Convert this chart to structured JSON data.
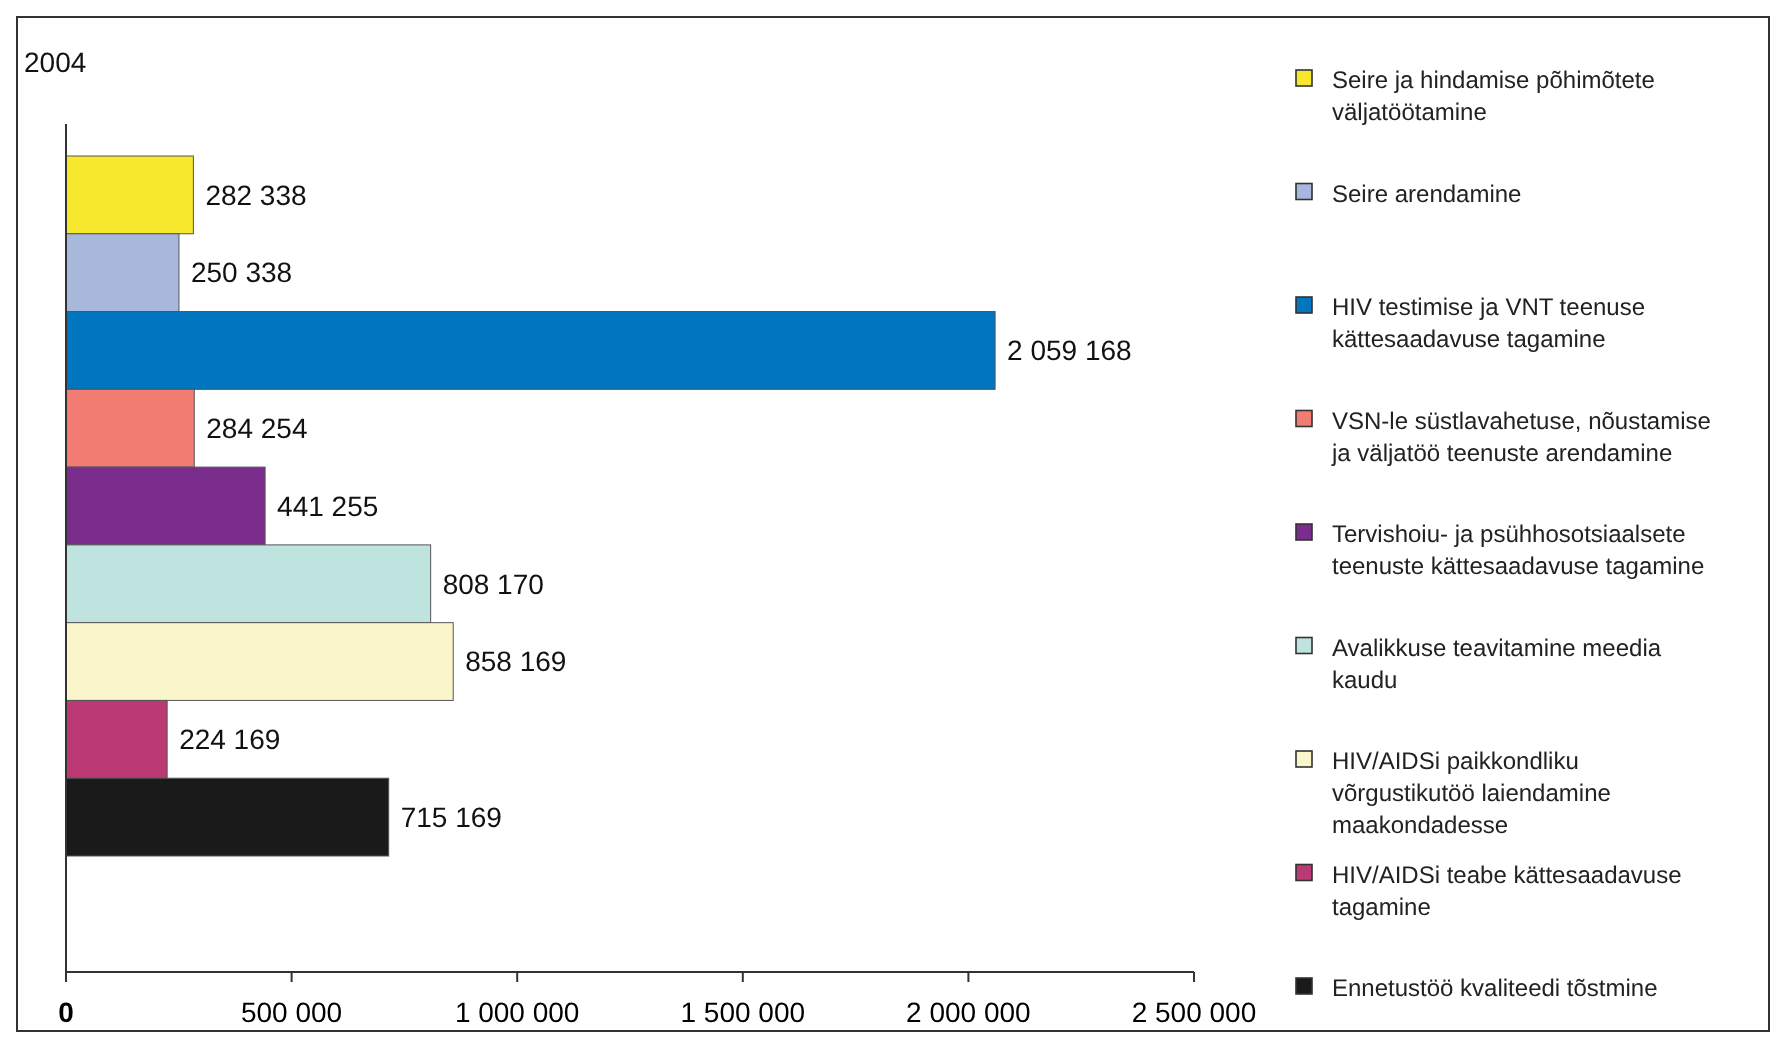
{
  "chart_data": {
    "type": "bar",
    "orientation": "horizontal",
    "ylabel": "2004",
    "categories": [
      null
    ],
    "series": [
      {
        "name": "Seire ja hindamise põhimõtete väljatöötamine",
        "color": "#f7e82e",
        "values": [
          282338
        ]
      },
      {
        "name": "Seire arendamine",
        "color": "#a8b8dc",
        "values": [
          250338
        ]
      },
      {
        "name": "HIV testimise ja VNT teenuse kättesaadavuse tagamine",
        "color": "#0076c0",
        "values": [
          2059168
        ]
      },
      {
        "name": "VSN-le süstlavahetuse, nõustamise ja väljatöö teenuste arendamine",
        "color": "#f27c72",
        "values": [
          284254
        ]
      },
      {
        "name": "Tervishoiu- ja psühhosotsiaalsete teenuste kättesaadavuse tagamine",
        "color": "#7b2d8e",
        "values": [
          441255
        ]
      },
      {
        "name": "Avalikkuse teavitamine meedia kaudu",
        "color": "#bfe3de",
        "values": [
          808170
        ]
      },
      {
        "name": "HIV/AIDSi paikkondliku võrgustikutöö laiendamine maakondadesse",
        "color": "#fbf5cc",
        "values": [
          858169
        ]
      },
      {
        "name": "HIV/AIDSi teabe kättesaadavuse tagamine",
        "color": "#bb3a74",
        "values": [
          224169
        ]
      },
      {
        "name": "Ennetustöö kvaliteedi tõstmine",
        "color": "#1a1a1a",
        "values": [
          715169
        ]
      }
    ],
    "xlim": [
      0,
      2500000
    ],
    "xticks": [
      {
        "value": 0,
        "label": "0"
      },
      {
        "value": 500000,
        "label": "500 000"
      },
      {
        "value": 1000000,
        "label": "1 000 000"
      },
      {
        "value": 1500000,
        "label": "1 500 000"
      },
      {
        "value": 2000000,
        "label": "2 000 000"
      },
      {
        "value": 2500000,
        "label": "2 500 000"
      }
    ],
    "tick_labels": "x",
    "data_labels": true,
    "legend": "right"
  }
}
